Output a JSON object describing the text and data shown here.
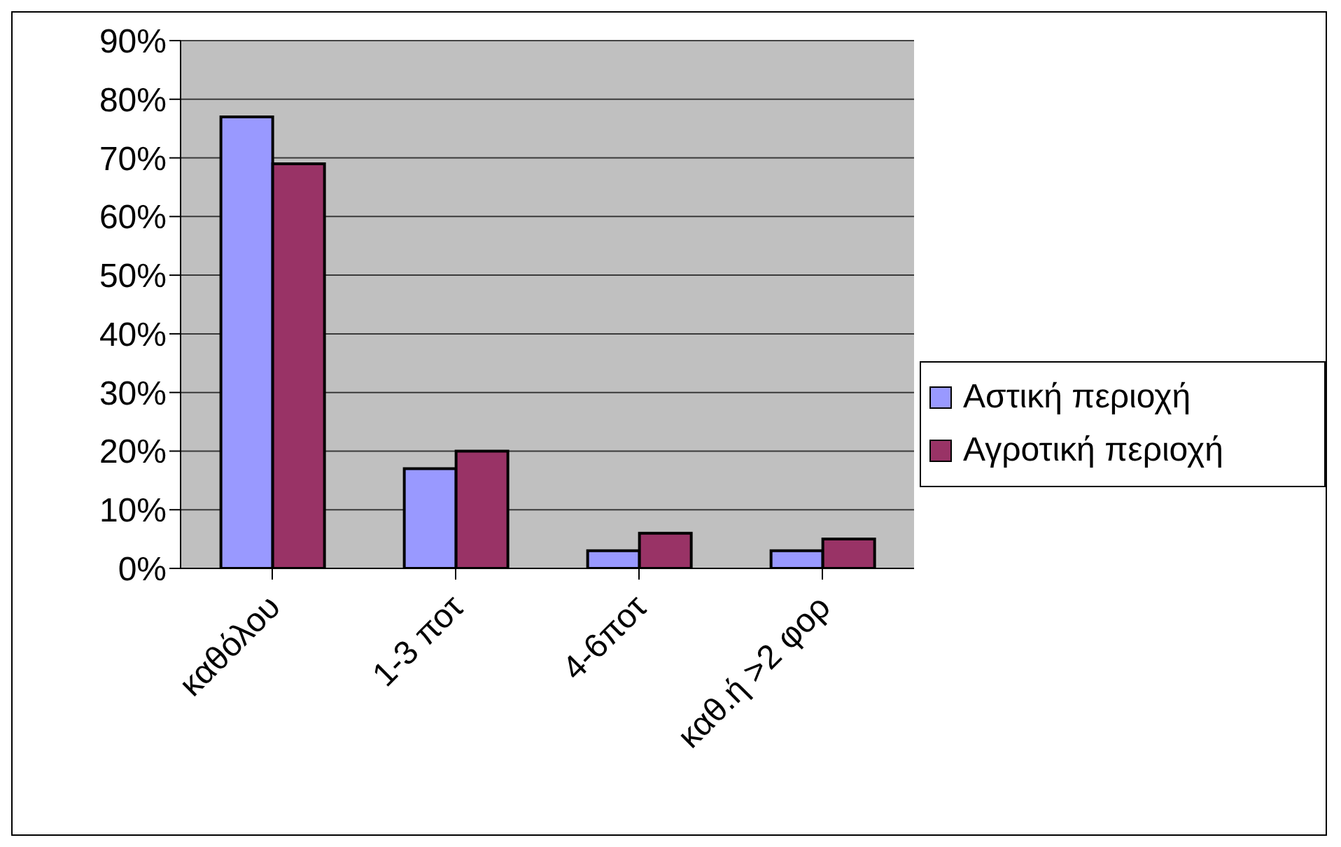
{
  "chart_data": {
    "type": "bar",
    "categories": [
      "καθόλου",
      "1-3 ποτ",
      "4-6ποτ",
      "καθ.ή >2 φορ"
    ],
    "series": [
      {
        "name": "Αστική περιοχή",
        "color": "#9999ff",
        "values": [
          77,
          17,
          3,
          3
        ]
      },
      {
        "name": "Αγροτική περιοχή",
        "color": "#993366",
        "values": [
          69,
          20,
          6,
          5
        ]
      }
    ],
    "ylim": [
      0,
      90
    ],
    "yticks": [
      {
        "value": 0,
        "label": "0%"
      },
      {
        "value": 10,
        "label": "10%"
      },
      {
        "value": 20,
        "label": "20%"
      },
      {
        "value": 30,
        "label": "30%"
      },
      {
        "value": 40,
        "label": "40%"
      },
      {
        "value": 50,
        "label": "50%"
      },
      {
        "value": 60,
        "label": "60%"
      },
      {
        "value": 70,
        "label": "70%"
      },
      {
        "value": 80,
        "label": "80%"
      },
      {
        "value": 90,
        "label": "90%"
      }
    ],
    "grid": "y",
    "legend": "right"
  }
}
